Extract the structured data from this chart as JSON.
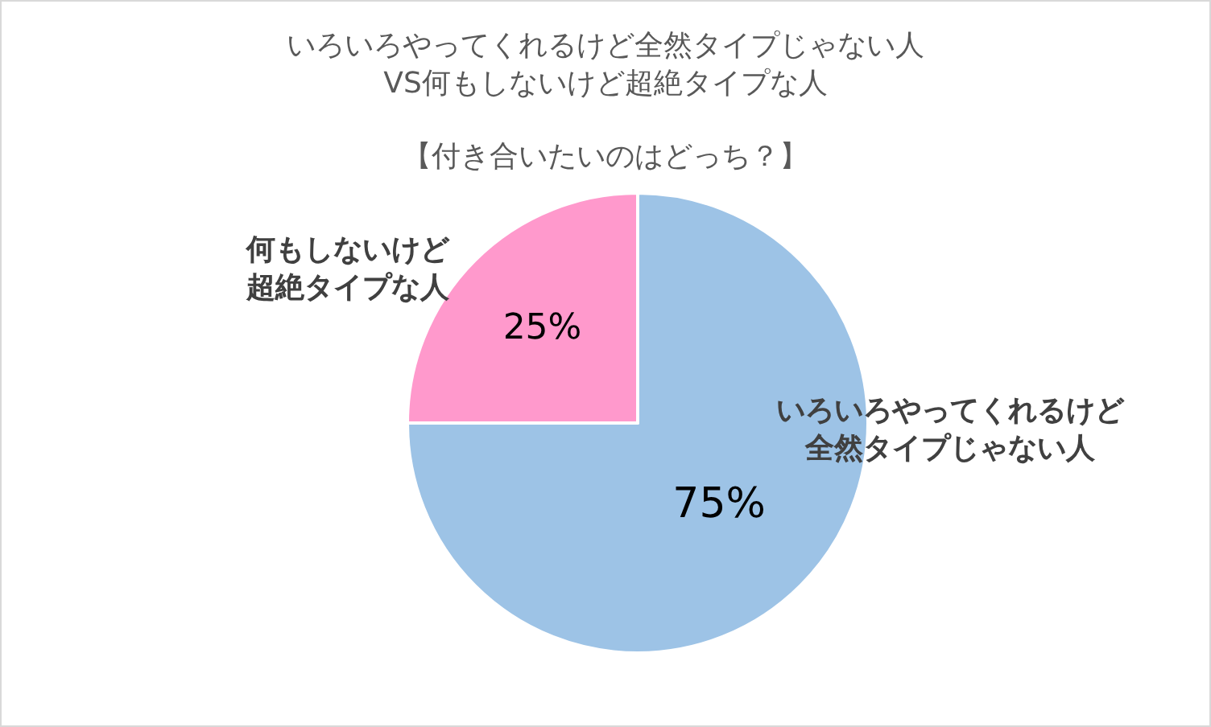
{
  "chart_data": {
    "type": "pie",
    "title": "いろいろやってくれるけど全然タイプじゃない人VS何もしないけど超絶タイプな人",
    "subtitle": "【付き合いたいのはどっち？】",
    "categories": [
      "いろいろやってくれるけど全然タイプじゃない人",
      "何もしないけど超絶タイプな人"
    ],
    "values": [
      75,
      25
    ],
    "colors": [
      "#9dc3e6",
      "#ff99cc"
    ],
    "value_labels": [
      "75%",
      "25%"
    ]
  }
}
